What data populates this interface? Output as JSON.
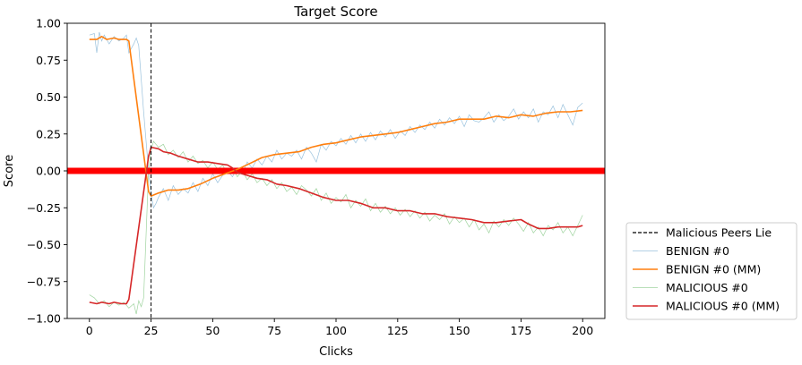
{
  "chart_data": {
    "type": "line",
    "title": "Target Score",
    "xlabel": "Clicks",
    "ylabel": "Score",
    "xlim": [
      -9,
      209
    ],
    "ylim": [
      -1.0,
      1.0
    ],
    "xticks": [
      0,
      25,
      50,
      75,
      100,
      125,
      150,
      175,
      200
    ],
    "yticks": [
      -1.0,
      -0.75,
      -0.5,
      -0.25,
      0.0,
      0.25,
      0.5,
      0.75,
      1.0
    ],
    "ytick_labels": [
      "−1.00",
      "−0.75",
      "−0.50",
      "−0.25",
      "0.00",
      "0.25",
      "0.50",
      "0.75",
      "1.00"
    ],
    "legend_position": "outside-lower-right",
    "grid": false,
    "horizontal_line": {
      "y": 0.0,
      "color": "#ff0000"
    },
    "vertical_line": {
      "name": "Malicious Peers Lie",
      "x": 25,
      "color": "#000000",
      "style": "dashed"
    },
    "series": [
      {
        "name": "BENIGN #0",
        "color": "#1f77b4",
        "style": "thin",
        "points": [
          [
            0,
            0.92
          ],
          [
            2,
            0.93
          ],
          [
            3,
            0.8
          ],
          [
            4,
            0.94
          ],
          [
            5,
            0.88
          ],
          [
            6,
            0.92
          ],
          [
            8,
            0.86
          ],
          [
            10,
            0.91
          ],
          [
            12,
            0.88
          ],
          [
            14,
            0.9
          ],
          [
            15,
            0.92
          ],
          [
            16,
            0.8
          ],
          [
            18,
            0.86
          ],
          [
            19,
            0.9
          ],
          [
            20,
            0.85
          ],
          [
            22,
            0.4
          ],
          [
            24,
            0.0
          ],
          [
            25,
            -0.15
          ],
          [
            26,
            -0.25
          ],
          [
            27,
            -0.22
          ],
          [
            28,
            -0.18
          ],
          [
            30,
            -0.12
          ],
          [
            32,
            -0.2
          ],
          [
            34,
            -0.1
          ],
          [
            36,
            -0.16
          ],
          [
            38,
            -0.12
          ],
          [
            40,
            -0.15
          ],
          [
            42,
            -0.08
          ],
          [
            44,
            -0.14
          ],
          [
            46,
            -0.05
          ],
          [
            48,
            -0.1
          ],
          [
            50,
            -0.02
          ],
          [
            52,
            -0.08
          ],
          [
            54,
            -0.03
          ],
          [
            56,
            0.0
          ],
          [
            58,
            -0.04
          ],
          [
            60,
            0.02
          ],
          [
            62,
            -0.02
          ],
          [
            64,
            0.06
          ],
          [
            66,
            0.02
          ],
          [
            68,
            0.08
          ],
          [
            70,
            0.04
          ],
          [
            72,
            0.1
          ],
          [
            74,
            0.06
          ],
          [
            76,
            0.14
          ],
          [
            78,
            0.08
          ],
          [
            80,
            0.12
          ],
          [
            82,
            0.1
          ],
          [
            84,
            0.14
          ],
          [
            86,
            0.08
          ],
          [
            88,
            0.16
          ],
          [
            90,
            0.12
          ],
          [
            92,
            0.06
          ],
          [
            94,
            0.18
          ],
          [
            96,
            0.14
          ],
          [
            98,
            0.2
          ],
          [
            100,
            0.17
          ],
          [
            102,
            0.22
          ],
          [
            104,
            0.18
          ],
          [
            106,
            0.24
          ],
          [
            108,
            0.19
          ],
          [
            110,
            0.25
          ],
          [
            112,
            0.2
          ],
          [
            114,
            0.26
          ],
          [
            116,
            0.21
          ],
          [
            118,
            0.27
          ],
          [
            120,
            0.23
          ],
          [
            122,
            0.28
          ],
          [
            124,
            0.22
          ],
          [
            126,
            0.27
          ],
          [
            128,
            0.24
          ],
          [
            130,
            0.3
          ],
          [
            132,
            0.26
          ],
          [
            134,
            0.31
          ],
          [
            136,
            0.28
          ],
          [
            138,
            0.33
          ],
          [
            140,
            0.29
          ],
          [
            142,
            0.35
          ],
          [
            144,
            0.31
          ],
          [
            146,
            0.36
          ],
          [
            148,
            0.32
          ],
          [
            150,
            0.37
          ],
          [
            152,
            0.3
          ],
          [
            154,
            0.38
          ],
          [
            156,
            0.34
          ],
          [
            158,
            0.33
          ],
          [
            160,
            0.36
          ],
          [
            162,
            0.4
          ],
          [
            164,
            0.33
          ],
          [
            166,
            0.38
          ],
          [
            168,
            0.34
          ],
          [
            170,
            0.37
          ],
          [
            172,
            0.42
          ],
          [
            174,
            0.35
          ],
          [
            176,
            0.4
          ],
          [
            178,
            0.36
          ],
          [
            180,
            0.42
          ],
          [
            182,
            0.33
          ],
          [
            184,
            0.4
          ],
          [
            186,
            0.38
          ],
          [
            188,
            0.44
          ],
          [
            190,
            0.36
          ],
          [
            192,
            0.45
          ],
          [
            194,
            0.38
          ],
          [
            196,
            0.31
          ],
          [
            198,
            0.43
          ],
          [
            200,
            0.46
          ]
        ]
      },
      {
        "name": "BENIGN #0 (MM)",
        "color": "#ff7f0e",
        "style": "thick",
        "points": [
          [
            0,
            0.89
          ],
          [
            3,
            0.89
          ],
          [
            5,
            0.91
          ],
          [
            7,
            0.89
          ],
          [
            10,
            0.9
          ],
          [
            12,
            0.89
          ],
          [
            15,
            0.89
          ],
          [
            16,
            0.88
          ],
          [
            24,
            -0.14
          ],
          [
            25,
            -0.17
          ],
          [
            28,
            -0.15
          ],
          [
            32,
            -0.13
          ],
          [
            36,
            -0.13
          ],
          [
            40,
            -0.12
          ],
          [
            45,
            -0.09
          ],
          [
            50,
            -0.05
          ],
          [
            55,
            -0.02
          ],
          [
            60,
            0.01
          ],
          [
            65,
            0.05
          ],
          [
            70,
            0.09
          ],
          [
            75,
            0.11
          ],
          [
            80,
            0.12
          ],
          [
            85,
            0.13
          ],
          [
            90,
            0.16
          ],
          [
            95,
            0.18
          ],
          [
            100,
            0.19
          ],
          [
            105,
            0.21
          ],
          [
            110,
            0.23
          ],
          [
            115,
            0.24
          ],
          [
            120,
            0.25
          ],
          [
            125,
            0.26
          ],
          [
            130,
            0.28
          ],
          [
            135,
            0.3
          ],
          [
            140,
            0.32
          ],
          [
            145,
            0.33
          ],
          [
            150,
            0.35
          ],
          [
            155,
            0.35
          ],
          [
            160,
            0.35
          ],
          [
            165,
            0.37
          ],
          [
            170,
            0.36
          ],
          [
            175,
            0.38
          ],
          [
            180,
            0.37
          ],
          [
            185,
            0.39
          ],
          [
            190,
            0.4
          ],
          [
            195,
            0.4
          ],
          [
            200,
            0.41
          ]
        ]
      },
      {
        "name": "MALICIOUS #0",
        "color": "#2ca02c",
        "style": "thin",
        "points": [
          [
            0,
            -0.84
          ],
          [
            2,
            -0.86
          ],
          [
            4,
            -0.9
          ],
          [
            6,
            -0.88
          ],
          [
            8,
            -0.92
          ],
          [
            10,
            -0.89
          ],
          [
            12,
            -0.91
          ],
          [
            14,
            -0.89
          ],
          [
            16,
            -0.93
          ],
          [
            18,
            -0.9
          ],
          [
            19,
            -0.97
          ],
          [
            20,
            -0.88
          ],
          [
            21,
            -0.92
          ],
          [
            22,
            -0.86
          ],
          [
            24,
            0.0
          ],
          [
            25,
            0.14
          ],
          [
            26,
            0.2
          ],
          [
            28,
            0.16
          ],
          [
            30,
            0.18
          ],
          [
            32,
            0.11
          ],
          [
            34,
            0.14
          ],
          [
            36,
            0.09
          ],
          [
            38,
            0.13
          ],
          [
            40,
            0.06
          ],
          [
            42,
            0.1
          ],
          [
            44,
            0.05
          ],
          [
            46,
            0.07
          ],
          [
            48,
            0.02
          ],
          [
            50,
            0.06
          ],
          [
            52,
            0.01
          ],
          [
            54,
            0.04
          ],
          [
            56,
            -0.02
          ],
          [
            58,
            0.02
          ],
          [
            60,
            -0.04
          ],
          [
            62,
            0.0
          ],
          [
            64,
            -0.06
          ],
          [
            66,
            -0.02
          ],
          [
            68,
            -0.08
          ],
          [
            70,
            -0.05
          ],
          [
            72,
            -0.1
          ],
          [
            74,
            -0.06
          ],
          [
            76,
            -0.12
          ],
          [
            78,
            -0.08
          ],
          [
            80,
            -0.14
          ],
          [
            82,
            -0.11
          ],
          [
            84,
            -0.16
          ],
          [
            86,
            -0.1
          ],
          [
            88,
            -0.13
          ],
          [
            90,
            -0.17
          ],
          [
            92,
            -0.12
          ],
          [
            94,
            -0.2
          ],
          [
            96,
            -0.15
          ],
          [
            98,
            -0.22
          ],
          [
            100,
            -0.18
          ],
          [
            102,
            -0.21
          ],
          [
            104,
            -0.16
          ],
          [
            106,
            -0.25
          ],
          [
            108,
            -0.2
          ],
          [
            110,
            -0.24
          ],
          [
            112,
            -0.19
          ],
          [
            114,
            -0.27
          ],
          [
            116,
            -0.22
          ],
          [
            118,
            -0.28
          ],
          [
            120,
            -0.24
          ],
          [
            122,
            -0.29
          ],
          [
            124,
            -0.25
          ],
          [
            126,
            -0.3
          ],
          [
            128,
            -0.26
          ],
          [
            130,
            -0.31
          ],
          [
            132,
            -0.27
          ],
          [
            134,
            -0.32
          ],
          [
            136,
            -0.28
          ],
          [
            138,
            -0.34
          ],
          [
            140,
            -0.3
          ],
          [
            142,
            -0.33
          ],
          [
            144,
            -0.29
          ],
          [
            146,
            -0.36
          ],
          [
            148,
            -0.31
          ],
          [
            150,
            -0.35
          ],
          [
            152,
            -0.32
          ],
          [
            154,
            -0.38
          ],
          [
            156,
            -0.33
          ],
          [
            158,
            -0.4
          ],
          [
            160,
            -0.36
          ],
          [
            162,
            -0.42
          ],
          [
            164,
            -0.34
          ],
          [
            166,
            -0.38
          ],
          [
            168,
            -0.33
          ],
          [
            170,
            -0.37
          ],
          [
            172,
            -0.32
          ],
          [
            174,
            -0.36
          ],
          [
            176,
            -0.41
          ],
          [
            178,
            -0.35
          ],
          [
            180,
            -0.42
          ],
          [
            182,
            -0.38
          ],
          [
            184,
            -0.44
          ],
          [
            186,
            -0.37
          ],
          [
            188,
            -0.4
          ],
          [
            190,
            -0.35
          ],
          [
            192,
            -0.42
          ],
          [
            194,
            -0.38
          ],
          [
            196,
            -0.44
          ],
          [
            198,
            -0.37
          ],
          [
            200,
            -0.3
          ]
        ]
      },
      {
        "name": "MALICIOUS #0 (MM)",
        "color": "#d62728",
        "style": "thick",
        "points": [
          [
            0,
            -0.89
          ],
          [
            3,
            -0.9
          ],
          [
            5,
            -0.89
          ],
          [
            8,
            -0.9
          ],
          [
            10,
            -0.89
          ],
          [
            13,
            -0.9
          ],
          [
            15,
            -0.9
          ],
          [
            16,
            -0.87
          ],
          [
            24,
            0.1
          ],
          [
            25,
            0.16
          ],
          [
            28,
            0.15
          ],
          [
            30,
            0.13
          ],
          [
            33,
            0.12
          ],
          [
            36,
            0.1
          ],
          [
            40,
            0.08
          ],
          [
            44,
            0.06
          ],
          [
            48,
            0.06
          ],
          [
            52,
            0.05
          ],
          [
            56,
            0.04
          ],
          [
            58,
            0.02
          ],
          [
            60,
            -0.01
          ],
          [
            64,
            -0.03
          ],
          [
            68,
            -0.05
          ],
          [
            72,
            -0.06
          ],
          [
            76,
            -0.09
          ],
          [
            80,
            -0.1
          ],
          [
            85,
            -0.12
          ],
          [
            90,
            -0.15
          ],
          [
            95,
            -0.18
          ],
          [
            100,
            -0.2
          ],
          [
            105,
            -0.2
          ],
          [
            110,
            -0.22
          ],
          [
            115,
            -0.25
          ],
          [
            120,
            -0.25
          ],
          [
            125,
            -0.27
          ],
          [
            130,
            -0.27
          ],
          [
            135,
            -0.29
          ],
          [
            140,
            -0.29
          ],
          [
            145,
            -0.31
          ],
          [
            150,
            -0.32
          ],
          [
            155,
            -0.33
          ],
          [
            160,
            -0.35
          ],
          [
            165,
            -0.35
          ],
          [
            170,
            -0.34
          ],
          [
            175,
            -0.33
          ],
          [
            178,
            -0.36
          ],
          [
            182,
            -0.39
          ],
          [
            186,
            -0.39
          ],
          [
            190,
            -0.38
          ],
          [
            195,
            -0.38
          ],
          [
            198,
            -0.38
          ],
          [
            200,
            -0.37
          ]
        ]
      }
    ],
    "legend": [
      "Malicious Peers Lie",
      "BENIGN #0",
      "BENIGN #0 (MM)",
      "MALICIOUS #0",
      "MALICIOUS #0 (MM)"
    ]
  }
}
